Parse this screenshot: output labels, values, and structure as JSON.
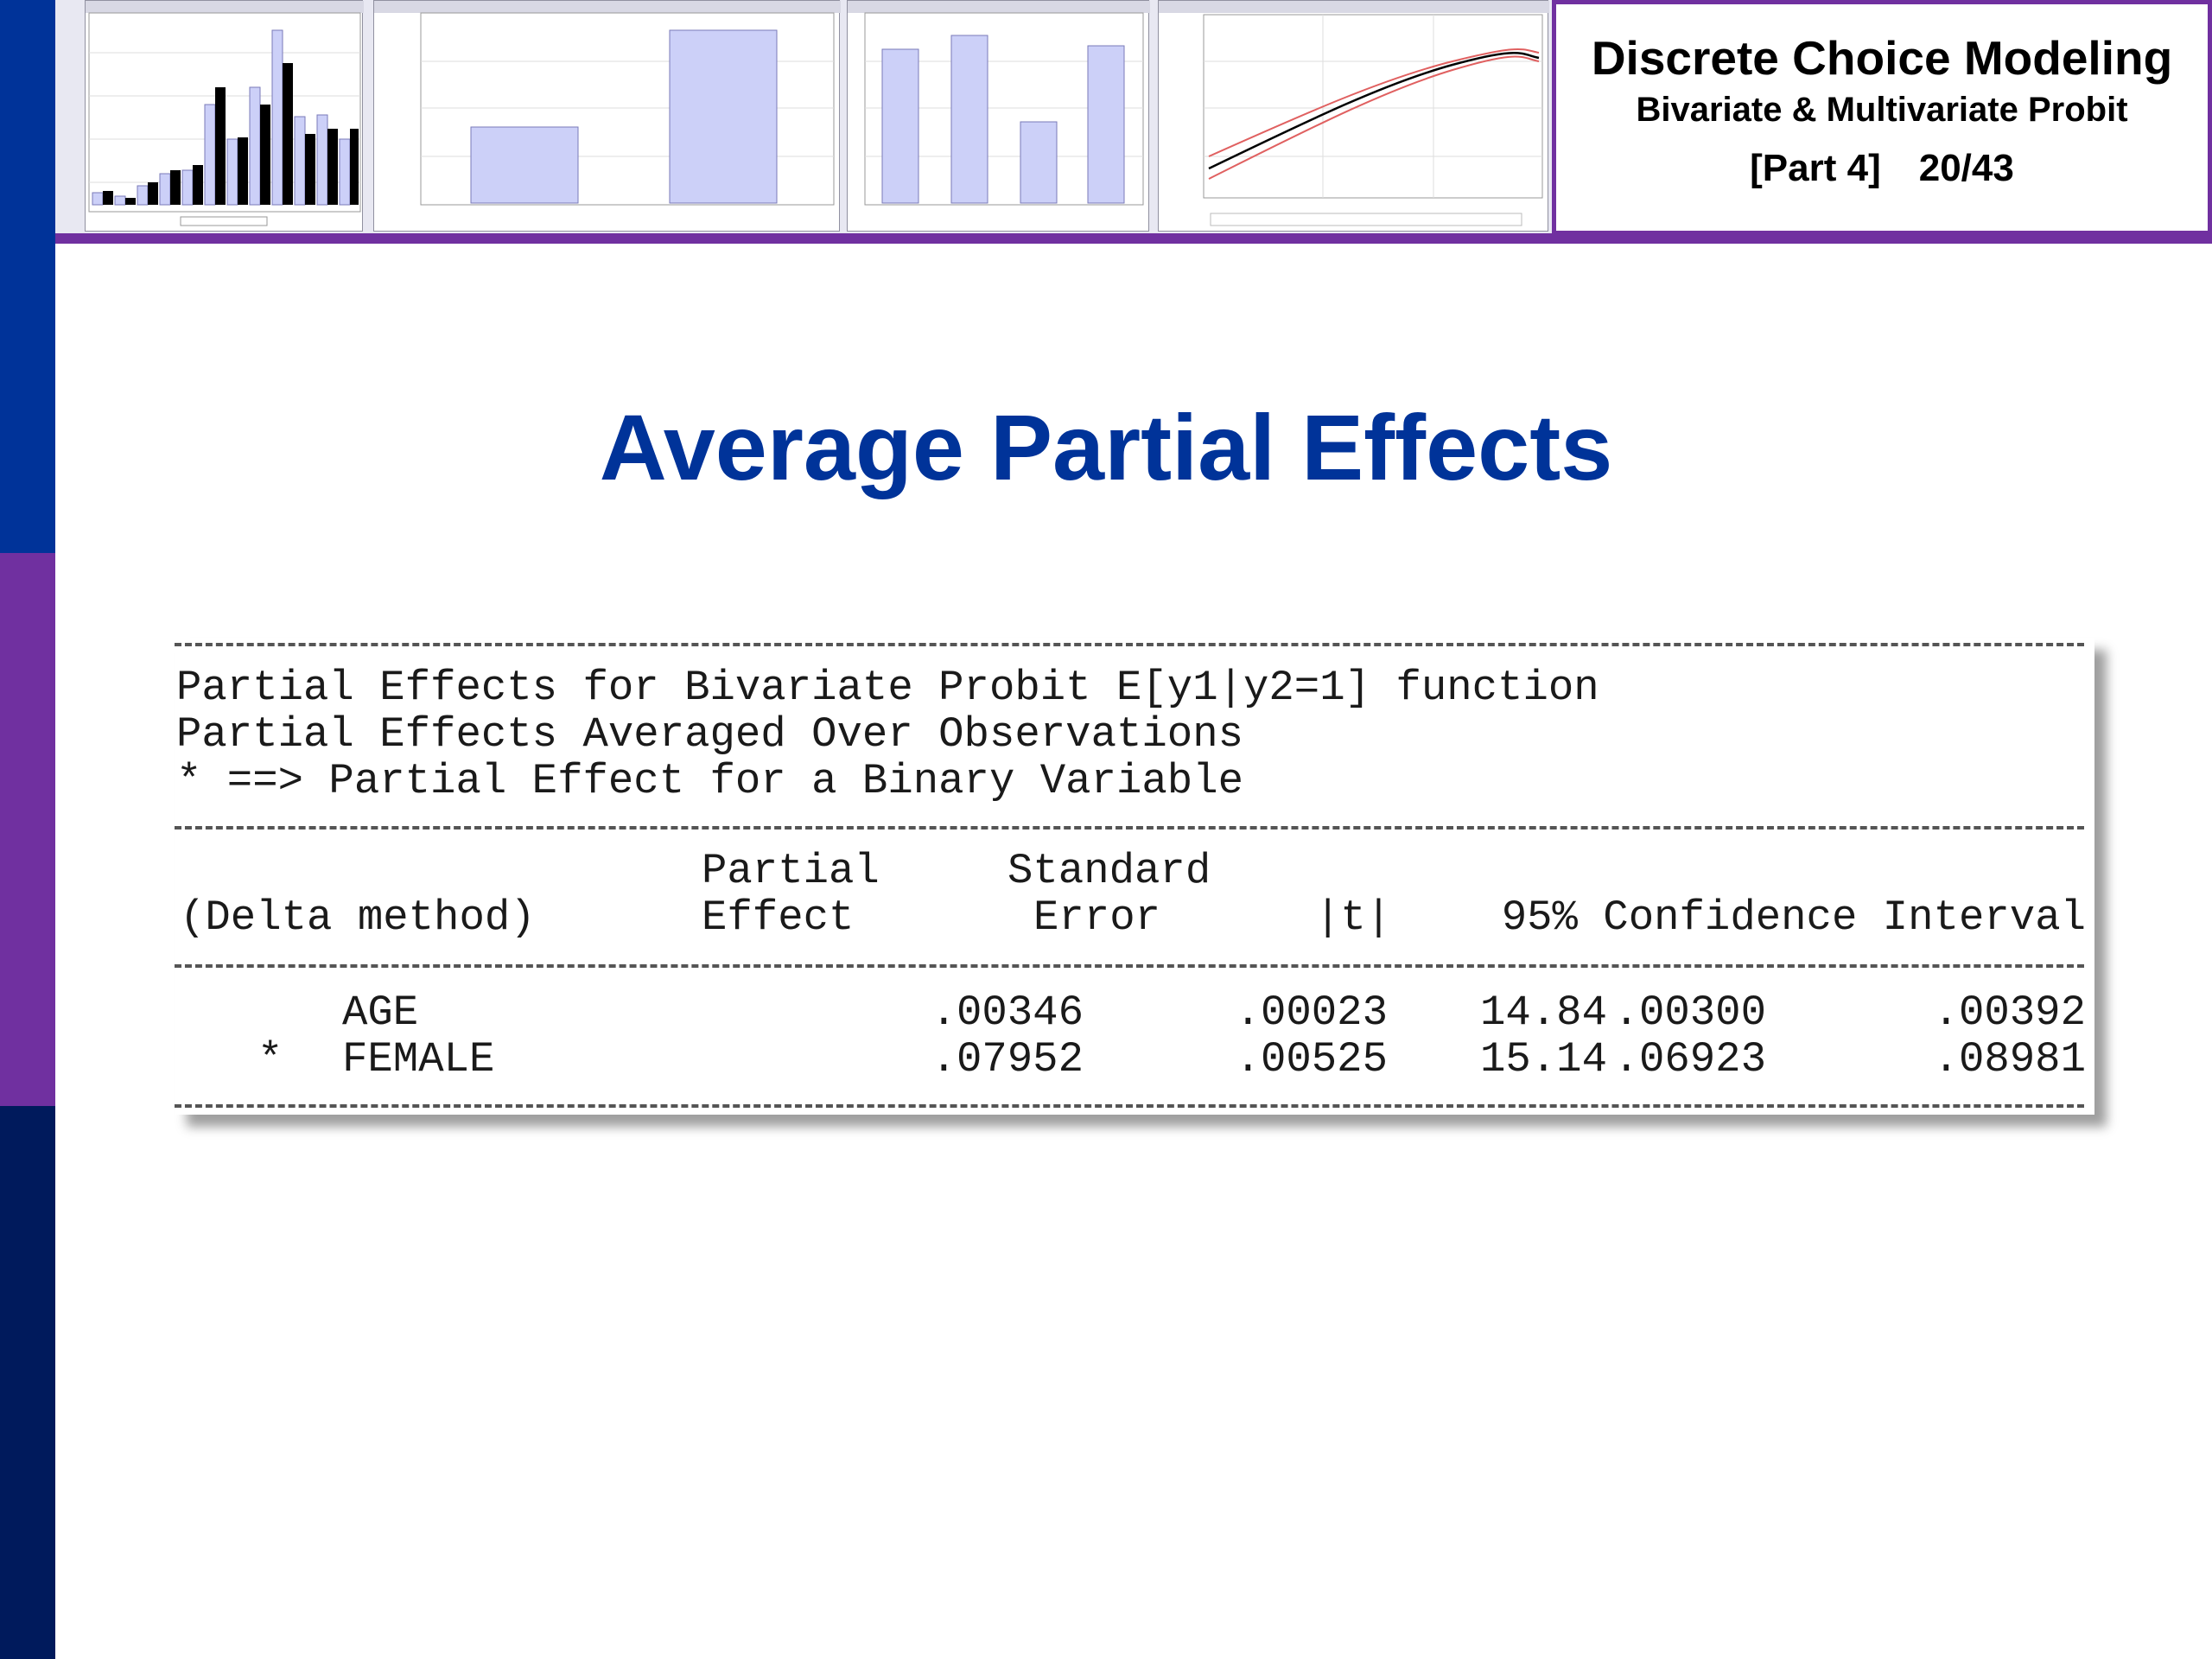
{
  "header": {
    "title_line1": "Discrete Choice Modeling",
    "title_line2": "Bivariate & Multivariate Probit",
    "part": "[Part 4]",
    "slide_number": "20/43"
  },
  "slide": {
    "heading": "Average Partial Effects"
  },
  "output": {
    "intro_line1": "Partial Effects for Bivariate Probit E[y1|y2=1] function",
    "intro_line2": "Partial Effects Averaged Over Observations",
    "intro_line3": "* ==> Partial Effect for a Binary Variable",
    "columns": {
      "method": "(Delta method)",
      "partial_top": "Partial",
      "partial_bottom": "Effect",
      "std_top": "Standard",
      "std_bottom": "Error",
      "t": "|t|",
      "ci": "95% Confidence Interval"
    },
    "rows": [
      {
        "marker": "",
        "variable": "AGE",
        "effect": ".00346",
        "std_error": ".00023",
        "t": "14.84",
        "ci_low": ".00300",
        "ci_high": ".00392"
      },
      {
        "marker": "*",
        "variable": "FEMALE",
        "effect": ".07952",
        "std_error": ".00525",
        "t": "15.14",
        "ci_low": ".06923",
        "ci_high": ".08981"
      }
    ]
  },
  "colors": {
    "heading_blue": "#003399",
    "accent_purple": "#7030a0",
    "bar_light": "#ccd0f8",
    "bar_dark": "#000000"
  }
}
